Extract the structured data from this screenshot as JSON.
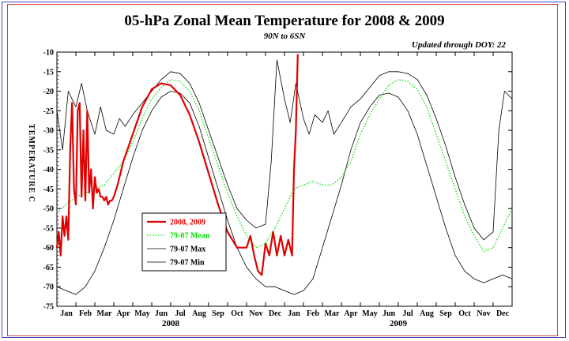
{
  "title": "05-hPa Zonal Mean Temperature for 2008 & 2009",
  "subtitle": "90N to 6SN",
  "updated": "Updated through DOY:  22",
  "colors": {
    "current": "#e00000",
    "mean": "#00e000",
    "extremes": "#000000",
    "frame_outer": "#4040c0",
    "frame_inner": "#d04040"
  },
  "chart_data": {
    "type": "line",
    "title": "05-hPa Zonal Mean Temperature for 2008 & 2009",
    "subtitle": "90N to 6SN",
    "ylabel": "TEMPERATURE C",
    "ylim": [
      -75,
      -10
    ],
    "yticks": [
      -10,
      -15,
      -20,
      -25,
      -30,
      -35,
      -40,
      -45,
      -50,
      -55,
      -60,
      -65,
      -70,
      -75
    ],
    "xlim": [
      0,
      24
    ],
    "month_labels": [
      "Jan",
      "Feb",
      "Mar",
      "Apr",
      "May",
      "Jun",
      "Jul",
      "Aug",
      "Sep",
      "Oct",
      "Nov",
      "Dec",
      "Jan",
      "Feb",
      "Mar",
      "Apr",
      "May",
      "Jun",
      "Jul",
      "Aug",
      "Sep",
      "Oct",
      "Nov",
      "Dec"
    ],
    "year_labels": [
      {
        "label": "2008",
        "month": 6
      },
      {
        "label": "2009",
        "month": 18
      }
    ],
    "legend_position": "lower-left",
    "series": [
      {
        "name": "2008, 2009",
        "style": "solid-thick",
        "color": "#e00000",
        "x": [
          0.0,
          0.1,
          0.2,
          0.3,
          0.4,
          0.5,
          0.6,
          0.7,
          0.8,
          0.9,
          1.0,
          1.1,
          1.2,
          1.3,
          1.4,
          1.5,
          1.6,
          1.7,
          1.8,
          1.9,
          2.0,
          2.1,
          2.2,
          2.3,
          2.4,
          2.5,
          2.6,
          2.7,
          2.8,
          2.9,
          3.0,
          3.2,
          3.5,
          4.0,
          4.5,
          5.0,
          5.5,
          6.0,
          6.5,
          7.0,
          7.5,
          8.0,
          8.5,
          9.0,
          9.5,
          10.0,
          10.2,
          10.4,
          10.6,
          10.8,
          11.0,
          11.2,
          11.4,
          11.6,
          11.8,
          12.0,
          12.2,
          12.4,
          12.5,
          12.6,
          12.7
        ],
        "y": [
          -60,
          -56,
          -62,
          -52,
          -57,
          -52,
          -58,
          -35,
          -23,
          -45,
          -49,
          -25,
          -23,
          -47,
          -30,
          -48,
          -25,
          -46,
          -40,
          -50,
          -42,
          -46,
          -45,
          -47,
          -47,
          -48,
          -47,
          -49,
          -48,
          -48,
          -47,
          -44,
          -38,
          -31,
          -24,
          -19.5,
          -18,
          -18.5,
          -21,
          -26,
          -33,
          -41,
          -49,
          -56,
          -60,
          -60,
          -57,
          -62,
          -66,
          -67,
          -59,
          -62,
          -56,
          -62,
          -57,
          -62,
          -58,
          -62,
          -40,
          -30,
          -10.5
        ]
      },
      {
        "name": "79-07 Mean",
        "style": "dotted",
        "color": "#00e000",
        "x": [
          0,
          0.5,
          1,
          1.5,
          2,
          2.5,
          3,
          3.5,
          4,
          4.5,
          5,
          5.5,
          6,
          6.5,
          7,
          7.5,
          8,
          8.5,
          9,
          9.5,
          10,
          10.5,
          11,
          11.5,
          12,
          12.5,
          13,
          13.5,
          14,
          14.5,
          15,
          15.5,
          16,
          16.5,
          17,
          17.5,
          18,
          18.5,
          19,
          19.5,
          20,
          20.5,
          21,
          21.5,
          22,
          22.5,
          23,
          23.5,
          24
        ],
        "y": [
          -51,
          -49,
          -47,
          -46,
          -45,
          -44,
          -41,
          -38,
          -33,
          -27,
          -22,
          -19,
          -17,
          -17.5,
          -20,
          -25,
          -32,
          -39,
          -46,
          -52,
          -57,
          -60,
          -59,
          -55,
          -50,
          -45,
          -44,
          -43,
          -44,
          -44,
          -42,
          -38,
          -31,
          -26,
          -22,
          -18.5,
          -17,
          -17.5,
          -19.5,
          -24,
          -31,
          -38,
          -45,
          -52,
          -57,
          -61,
          -60,
          -55,
          -50
        ]
      },
      {
        "name": "79-07 Max",
        "style": "solid-thin",
        "color": "#000000",
        "x": [
          0,
          0.3,
          0.6,
          1,
          1.3,
          1.6,
          2,
          2.3,
          2.6,
          3,
          3.3,
          3.6,
          4,
          4.5,
          5,
          5.5,
          6,
          6.5,
          7,
          7.5,
          8,
          8.5,
          9,
          9.5,
          10,
          10.5,
          11,
          11.3,
          11.6,
          12,
          12.3,
          12.6,
          13,
          13.3,
          13.6,
          14,
          14.3,
          14.6,
          15,
          15.5,
          16,
          16.5,
          17,
          17.5,
          18,
          18.5,
          19,
          19.5,
          20,
          20.5,
          21,
          21.5,
          22,
          22.5,
          23,
          23.3,
          23.6,
          24
        ],
        "y": [
          -25,
          -35,
          -20,
          -24,
          -18,
          -25,
          -31,
          -24,
          -30,
          -31,
          -27,
          -29,
          -26,
          -23,
          -20,
          -17,
          -15,
          -15.5,
          -18,
          -23,
          -30,
          -37,
          -44,
          -50,
          -53,
          -55,
          -54,
          -38,
          -12,
          -22,
          -28,
          -18,
          -27,
          -31,
          -26,
          -28,
          -25,
          -31,
          -28,
          -24,
          -22,
          -19,
          -16,
          -15,
          -15,
          -15.5,
          -17,
          -21,
          -27,
          -34,
          -42,
          -49,
          -55,
          -58,
          -56,
          -30,
          -20,
          -22
        ]
      },
      {
        "name": "79-07 Min",
        "style": "solid-thin",
        "color": "#000000",
        "x": [
          0,
          0.5,
          1,
          1.5,
          2,
          2.5,
          3,
          3.5,
          4,
          4.5,
          5,
          5.5,
          6,
          6.5,
          7,
          7.5,
          8,
          8.5,
          9,
          9.5,
          10,
          10.5,
          11,
          11.5,
          12,
          12.5,
          13,
          13.5,
          14,
          14.5,
          15,
          15.5,
          16,
          16.5,
          17,
          17.5,
          18,
          18.5,
          19,
          19.5,
          20,
          20.5,
          21,
          21.5,
          22,
          22.5,
          23,
          23.5,
          24
        ],
        "y": [
          -70,
          -71,
          -72,
          -70,
          -66,
          -60,
          -53,
          -45,
          -37,
          -30,
          -25,
          -21.5,
          -20,
          -20.5,
          -23,
          -29,
          -37,
          -45,
          -53,
          -60,
          -65,
          -68,
          -70,
          -70,
          -71,
          -72,
          -71,
          -68,
          -60,
          -52,
          -44,
          -35,
          -28,
          -24,
          -21,
          -20.5,
          -21.5,
          -25,
          -31,
          -39,
          -47,
          -55,
          -62,
          -66,
          -68,
          -69,
          -68,
          -67,
          -68
        ]
      }
    ]
  }
}
